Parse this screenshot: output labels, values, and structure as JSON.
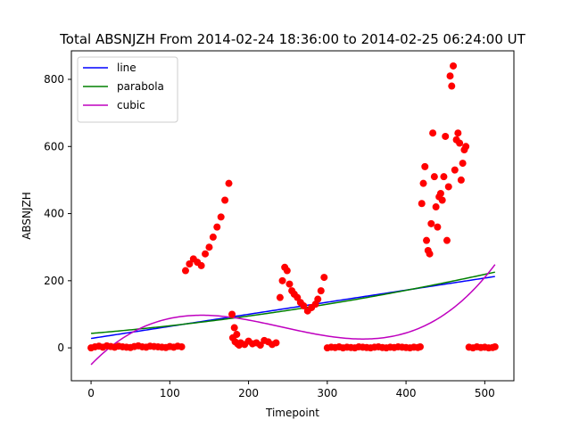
{
  "chart_data": {
    "type": "scatter",
    "title": "Total ABSNJZH From 2014-02-24 18:36:00 to 2014-02-25 06:24:00 UT",
    "xlabel": "Timepoint",
    "ylabel": "ABSNJZH",
    "xlim": [
      -25,
      537
    ],
    "ylim": [
      -98,
      885
    ],
    "xticks": [
      0,
      100,
      200,
      300,
      400,
      500
    ],
    "yticks": [
      0,
      200,
      400,
      600,
      800
    ],
    "grid": false,
    "legend": "top-left",
    "colors": {
      "points": "#ff0000",
      "line": "#0000ff",
      "parabola": "#008000",
      "cubic": "#bf00bf"
    },
    "fits": [
      {
        "name": "line",
        "color": "#0000ff",
        "type": "poly",
        "coef": [
          28,
          0.36
        ]
      },
      {
        "name": "parabola",
        "color": "#008000",
        "type": "poly",
        "coef": [
          43,
          0.197,
          0.00031
        ]
      },
      {
        "name": "cubic",
        "color": "#bf00bf",
        "type": "poly",
        "coef": [
          -50,
          2.42,
          -0.0121,
          1.66e-05
        ]
      }
    ],
    "points": {
      "name": "data",
      "x": [
        0,
        5,
        10,
        15,
        20,
        25,
        30,
        35,
        40,
        45,
        50,
        55,
        60,
        65,
        70,
        75,
        80,
        85,
        90,
        95,
        100,
        105,
        110,
        115,
        120,
        125,
        130,
        135,
        140,
        145,
        150,
        155,
        160,
        165,
        170,
        175,
        179,
        182,
        185,
        180,
        183,
        186,
        188,
        190,
        195,
        200,
        205,
        210,
        215,
        220,
        225,
        230,
        235,
        240,
        243,
        246,
        249,
        252,
        255,
        258,
        262,
        266,
        270,
        275,
        280,
        285,
        288,
        292,
        296,
        300,
        305,
        310,
        315,
        320,
        325,
        330,
        335,
        340,
        345,
        350,
        355,
        360,
        365,
        370,
        375,
        380,
        385,
        390,
        395,
        400,
        405,
        410,
        415,
        418,
        420,
        422,
        424,
        426,
        428,
        430,
        432,
        434,
        436,
        438,
        440,
        442,
        444,
        446,
        448,
        450,
        452,
        454,
        456,
        458,
        460,
        462,
        464,
        466,
        468,
        470,
        472,
        474,
        476,
        480,
        485,
        490,
        495,
        500,
        505,
        510,
        513
      ],
      "y": [
        0,
        3,
        5,
        2,
        6,
        4,
        2,
        5,
        3,
        2,
        1,
        4,
        6,
        3,
        2,
        5,
        4,
        3,
        2,
        1,
        4,
        2,
        5,
        3,
        230,
        250,
        265,
        255,
        245,
        280,
        300,
        330,
        360,
        390,
        440,
        490,
        100,
        60,
        40,
        30,
        18,
        12,
        8,
        15,
        10,
        20,
        12,
        15,
        8,
        22,
        18,
        10,
        15,
        150,
        200,
        240,
        230,
        190,
        170,
        160,
        150,
        135,
        125,
        110,
        120,
        130,
        145,
        170,
        210,
        0,
        2,
        1,
        3,
        0,
        2,
        1,
        0,
        3,
        2,
        1,
        0,
        2,
        3,
        1,
        0,
        2,
        1,
        3,
        2,
        1,
        0,
        2,
        1,
        3,
        430,
        490,
        540,
        320,
        290,
        280,
        370,
        640,
        510,
        420,
        360,
        450,
        460,
        440,
        510,
        630,
        320,
        480,
        810,
        780,
        840,
        530,
        620,
        640,
        610,
        500,
        550,
        590,
        600,
        2,
        0,
        3,
        1,
        2,
        0,
        1,
        3
      ]
    }
  }
}
